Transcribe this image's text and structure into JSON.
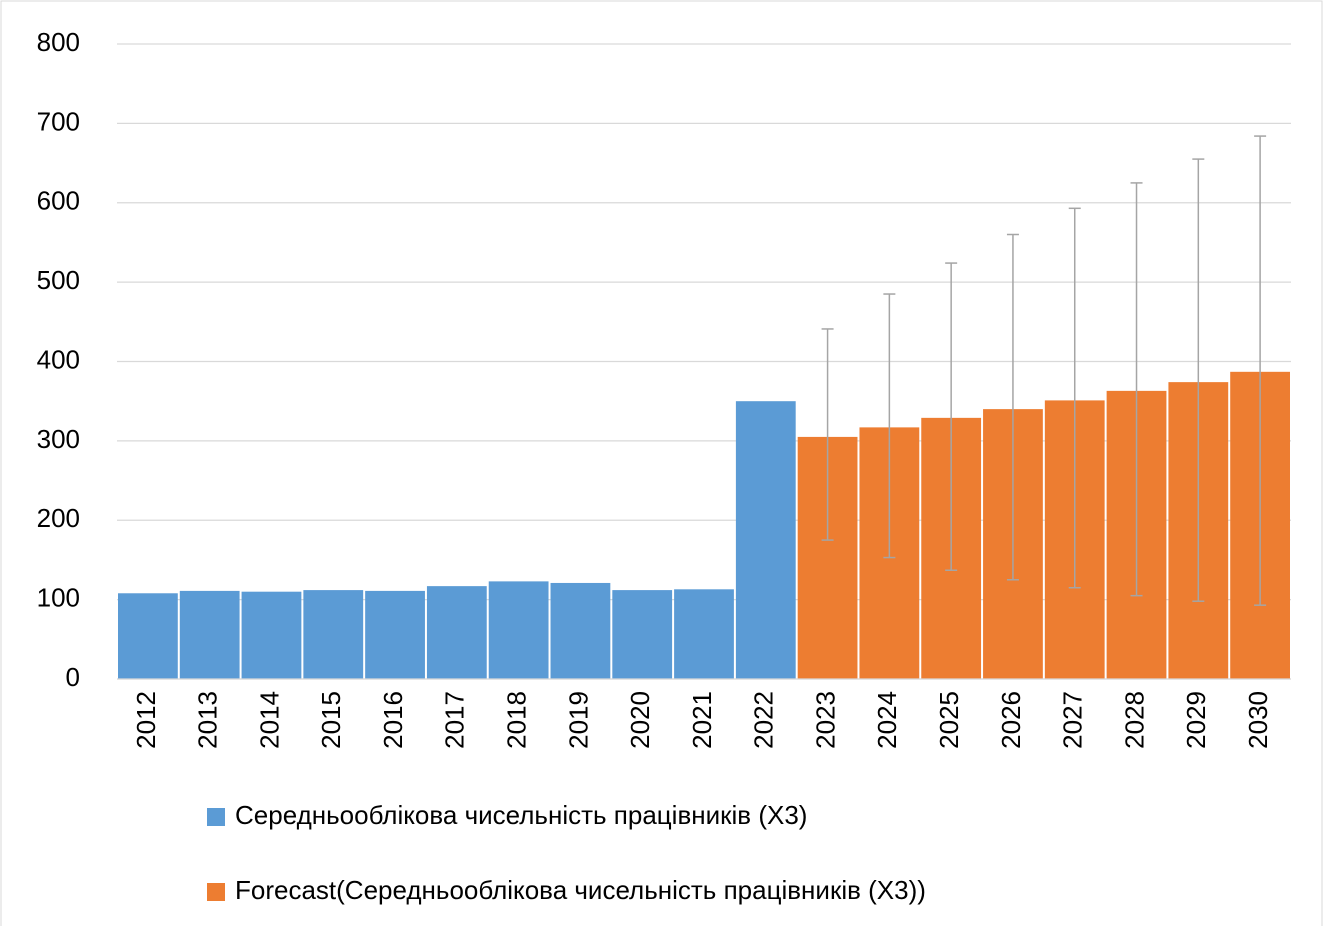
{
  "chart_data": {
    "type": "bar",
    "categories": [
      "2012",
      "2013",
      "2014",
      "2015",
      "2016",
      "2017",
      "2018",
      "2019",
      "2020",
      "2021",
      "2022",
      "2023",
      "2024",
      "2025",
      "2026",
      "2027",
      "2028",
      "2029",
      "2030"
    ],
    "series": [
      {
        "name": "Середньооблікова чисельність працівників (X3)",
        "color": "#5b9bd5",
        "values": [
          108,
          111,
          110,
          112,
          111,
          117,
          123,
          121,
          112,
          113,
          350,
          null,
          null,
          null,
          null,
          null,
          null,
          null,
          null
        ]
      },
      {
        "name": "Forecast(Середньооблікова чисельність працівників (X3))",
        "color": "#ed7d31",
        "values": [
          null,
          null,
          null,
          null,
          null,
          null,
          null,
          null,
          null,
          null,
          null,
          305,
          317,
          329,
          340,
          351,
          363,
          374,
          387
        ],
        "lower": [
          null,
          null,
          null,
          null,
          null,
          null,
          null,
          null,
          null,
          null,
          null,
          175,
          153,
          137,
          125,
          115,
          105,
          98,
          93
        ],
        "upper": [
          null,
          null,
          null,
          null,
          null,
          null,
          null,
          null,
          null,
          null,
          null,
          441,
          485,
          524,
          560,
          593,
          625,
          655,
          684
        ],
        "error_color": "#a5a5a5"
      }
    ],
    "ylim": [
      0,
      800
    ],
    "yticks": [
      0,
      100,
      200,
      300,
      400,
      500,
      600,
      700,
      800
    ],
    "grid": true,
    "legend": "bottom"
  }
}
